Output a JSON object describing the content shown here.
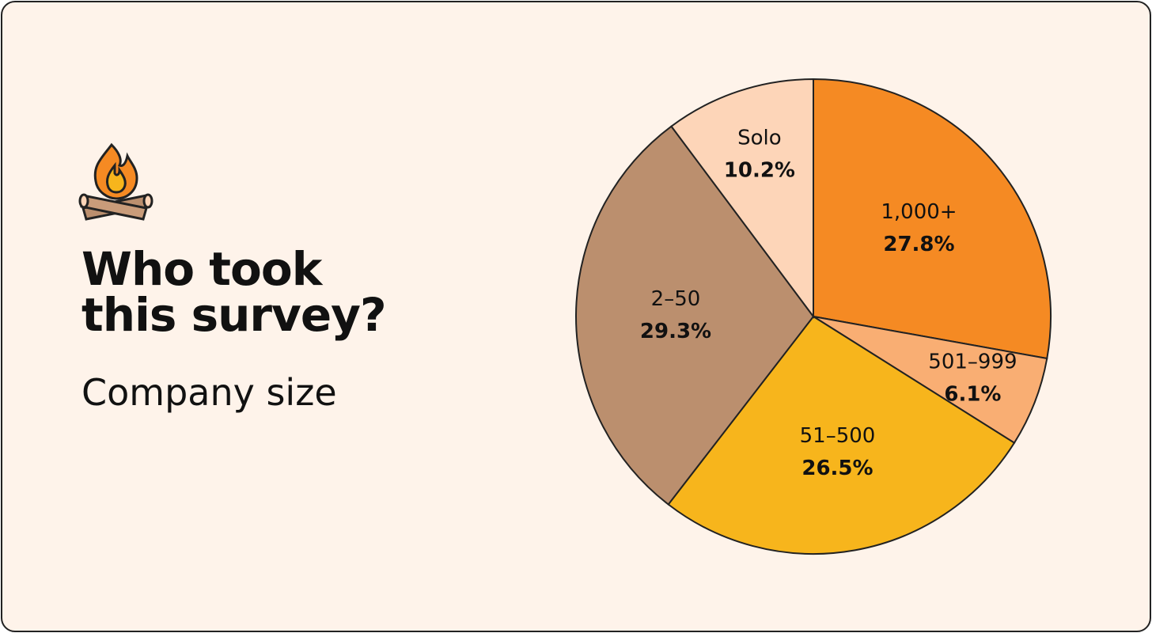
{
  "chart_data": {
    "type": "pie",
    "title": "Who took this survey?",
    "subtitle": "Company size",
    "categories": [
      "1,000+",
      "501–999",
      "51–500",
      "2–50",
      "Solo"
    ],
    "values": [
      27.8,
      6.1,
      26.5,
      29.3,
      10.2
    ],
    "value_labels": [
      "27.8%",
      "6.1%",
      "26.5%",
      "29.3%",
      "10.2%"
    ],
    "colors": [
      "#f58a23",
      "#f9ae73",
      "#f7b51c",
      "#bb8f6e",
      "#fdd5b8"
    ]
  }
}
